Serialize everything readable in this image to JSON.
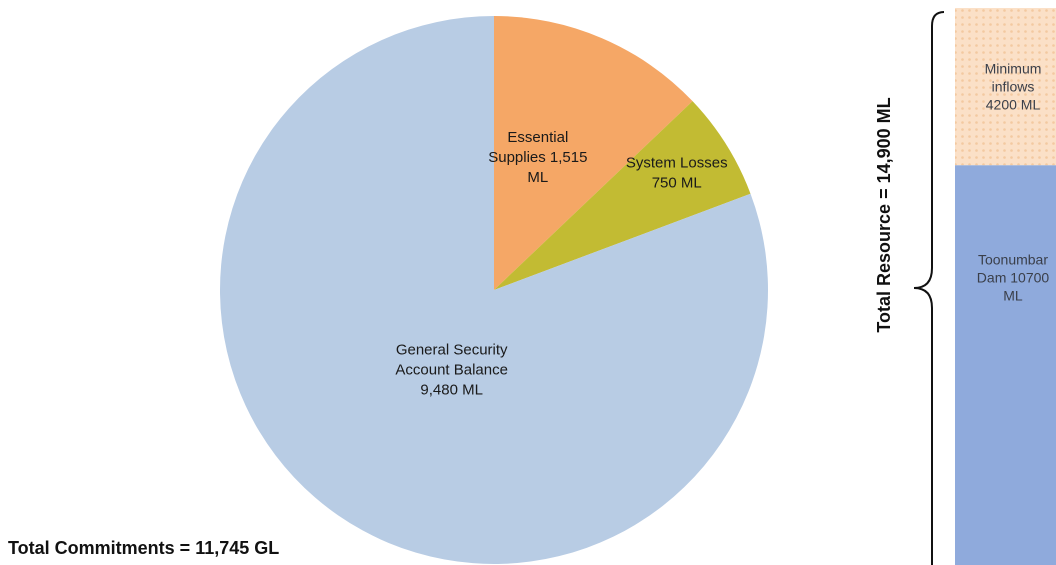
{
  "chart_data": [
    {
      "type": "pie",
      "unit": "ML",
      "slices": [
        {
          "name": "Essential Supplies",
          "value": 1515,
          "color": "#F5A766",
          "label_lines": [
            "Essential",
            "Supplies 1,515",
            "ML"
          ]
        },
        {
          "name": "System Losses",
          "value": 750,
          "color": "#C2BB33",
          "label_lines": [
            "System Losses",
            "750 ML"
          ]
        },
        {
          "name": "General Security Account Balance",
          "value": 9480,
          "color": "#B8CCE4",
          "label_lines": [
            "General Security",
            "Account Balance",
            "9,480 ML"
          ]
        }
      ],
      "total_label": "Total Commitments =  11,745 GL"
    },
    {
      "type": "bar",
      "stacked": true,
      "unit": "ML",
      "segments": [
        {
          "name": "Minimum inflows",
          "value": 4200,
          "color": "#FBE0C7",
          "pattern": "dots",
          "label_lines": [
            "Minimum",
            "inflows",
            "4200 ML"
          ]
        },
        {
          "name": "Toonumbar Dam",
          "value": 10700,
          "color": "#8FAADC",
          "label_lines": [
            "Toonumbar",
            "Dam 10700",
            "ML"
          ]
        }
      ],
      "total_label": "Total Resource = 14,900 ML"
    }
  ]
}
